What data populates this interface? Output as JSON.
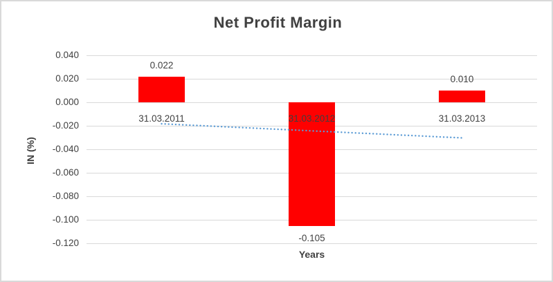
{
  "chart_data": {
    "type": "bar",
    "title": "Net Profit Margin",
    "xlabel": "Years",
    "ylabel": "IN (%)",
    "categories": [
      "31.03.2011",
      "31.03.2012",
      "31.03.2013"
    ],
    "values": [
      0.022,
      -0.105,
      0.01
    ],
    "data_labels": [
      "0.022",
      "-0.105",
      "0.010"
    ],
    "yticks": [
      0.04,
      0.02,
      0.0,
      -0.02,
      -0.04,
      -0.06,
      -0.08,
      -0.1,
      -0.12
    ],
    "ytick_labels": [
      "0.040",
      "0.020",
      "0.000",
      "-0.020",
      "-0.040",
      "-0.060",
      "-0.080",
      "-0.100",
      "-0.120"
    ],
    "ylim": [
      -0.12,
      0.04
    ],
    "grid": true,
    "legend": "none",
    "bar_color": "#FF0000",
    "trendline": {
      "type": "linear",
      "style": "dotted",
      "color": "#5B9BD5",
      "start_value": -0.0183,
      "end_value": -0.0303
    },
    "colors": {
      "text": "#404040",
      "gridline": "#D9D9D9",
      "border": "#D9D9D9",
      "background": "#FFFFFF"
    }
  }
}
